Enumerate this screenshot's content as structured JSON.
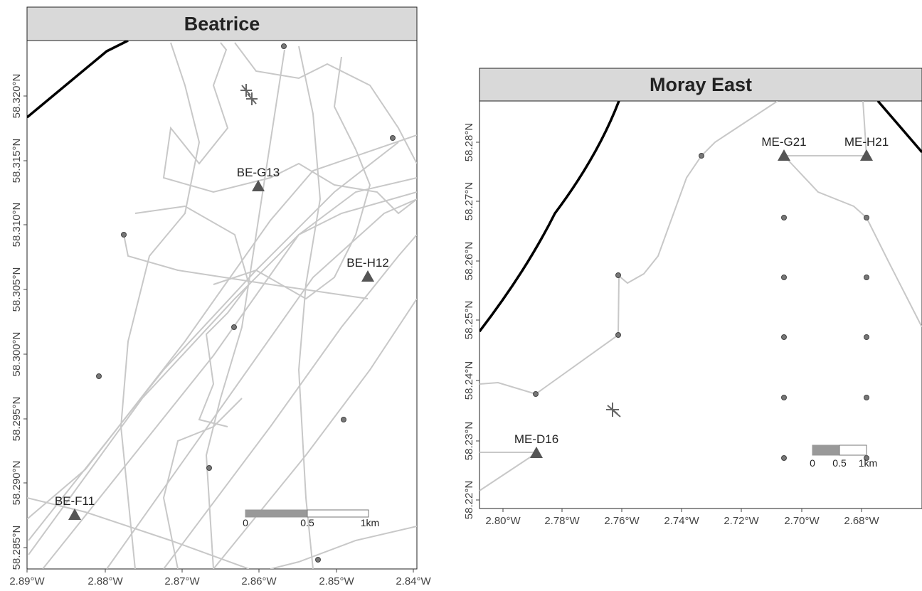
{
  "panels": [
    {
      "title": "Beatrice",
      "x_ticks": [
        "2.89°W",
        "2.88°W",
        "2.87°W",
        "2.86°W",
        "2.85°W",
        "2.84°W"
      ],
      "y_ticks": [
        "58.285°N",
        "58.290°N",
        "58.295°N",
        "58.300°N",
        "58.305°N",
        "58.310°N",
        "58.315°N",
        "58.320°N"
      ],
      "stations": [
        "BE-G13",
        "BE-H12",
        "BE-F11"
      ],
      "scale_bar": [
        "0",
        "0.5",
        "1km"
      ]
    },
    {
      "title": "Moray East",
      "x_ticks": [
        "2.80°W",
        "2.78°W",
        "2.76°W",
        "2.74°W",
        "2.72°W",
        "2.70°W",
        "2.68°W"
      ],
      "y_ticks": [
        "58.22°N",
        "58.23°N",
        "58.24°N",
        "58.25°N",
        "58.26°N",
        "58.27°N",
        "58.28°N"
      ],
      "stations": [
        "ME-G21",
        "ME-H21",
        "ME-D16"
      ],
      "scale_bar": [
        "0",
        "0.5",
        "1km"
      ]
    }
  ]
}
